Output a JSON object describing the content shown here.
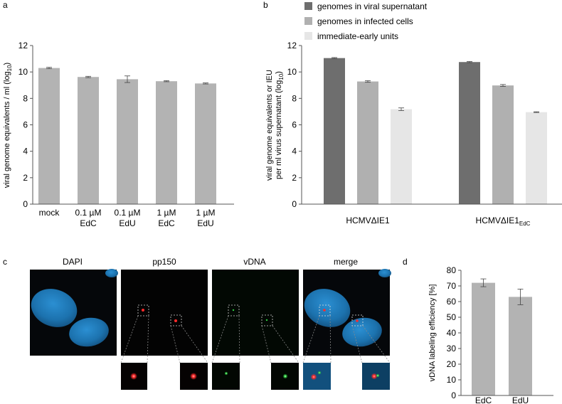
{
  "panels": {
    "a": "a",
    "b": "b",
    "c": "c",
    "d": "d"
  },
  "microscopy": {
    "channels": [
      "DAPI",
      "pp150",
      "vDNA",
      "merge"
    ]
  },
  "colors": {
    "bar_gray": "#b3b3b3",
    "series_dark": "#6e6e6e",
    "series_mid": "#b0b0b0",
    "series_light": "#e6e6e6",
    "nucleus_blue": "#1f7fbf",
    "signal_red": "#ff2a2a",
    "signal_green": "#2ecc40"
  },
  "chart_data": [
    {
      "panel": "a",
      "type": "bar",
      "categories": [
        [
          "mock"
        ],
        [
          "0.1 µM",
          "EdC"
        ],
        [
          "0.1 µM",
          "EdU"
        ],
        [
          "1 µM",
          "EdC"
        ],
        [
          "1 µM",
          "EdU"
        ]
      ],
      "values": [
        10.3,
        9.62,
        9.45,
        9.3,
        9.13
      ],
      "errors": [
        0.05,
        0.05,
        0.25,
        0.04,
        0.04
      ],
      "ylabel": "viral genome equivalents / ml (log",
      "ylabel_sub": "10",
      "ylabel_end": ")",
      "ylim": [
        0,
        12
      ],
      "yticks": [
        "0",
        "2",
        "4",
        "6",
        "8",
        "10",
        "12"
      ],
      "grid": false
    },
    {
      "panel": "b",
      "type": "bar",
      "categories": [
        "HCMVΔIE1",
        "HCMVΔIE1"
      ],
      "category_subscripts": [
        "",
        "EdC"
      ],
      "series": [
        {
          "name": "genomes in viral supernatant",
          "values": [
            11.05,
            10.75
          ],
          "errors": [
            0.04,
            0.04
          ]
        },
        {
          "name": "genomes in infected cells",
          "values": [
            9.28,
            8.98
          ],
          "errors": [
            0.06,
            0.07
          ]
        },
        {
          "name": "immediate-early units",
          "values": [
            7.18,
            6.96
          ],
          "errors": [
            0.1,
            0.03
          ]
        }
      ],
      "ylabel_line1": "viral genome equivalents or IEU",
      "ylabel_line2": "per ml virus supernatant (log",
      "ylabel_sub": "10",
      "ylabel_end": ")",
      "ylim": [
        0,
        12
      ],
      "yticks": [
        "0",
        "2",
        "4",
        "6",
        "8",
        "10",
        "12"
      ],
      "legend_position": "top",
      "grid": false
    },
    {
      "panel": "d",
      "type": "bar",
      "categories": [
        "EdC",
        "EdU"
      ],
      "values": [
        72,
        63
      ],
      "errors": [
        2.5,
        5
      ],
      "ylabel": "vDNA labeling efficiency [%]",
      "ylim": [
        0,
        80
      ],
      "yticks": [
        "0",
        "10",
        "20",
        "30",
        "40",
        "50",
        "60",
        "70",
        "80"
      ],
      "grid": false
    }
  ]
}
